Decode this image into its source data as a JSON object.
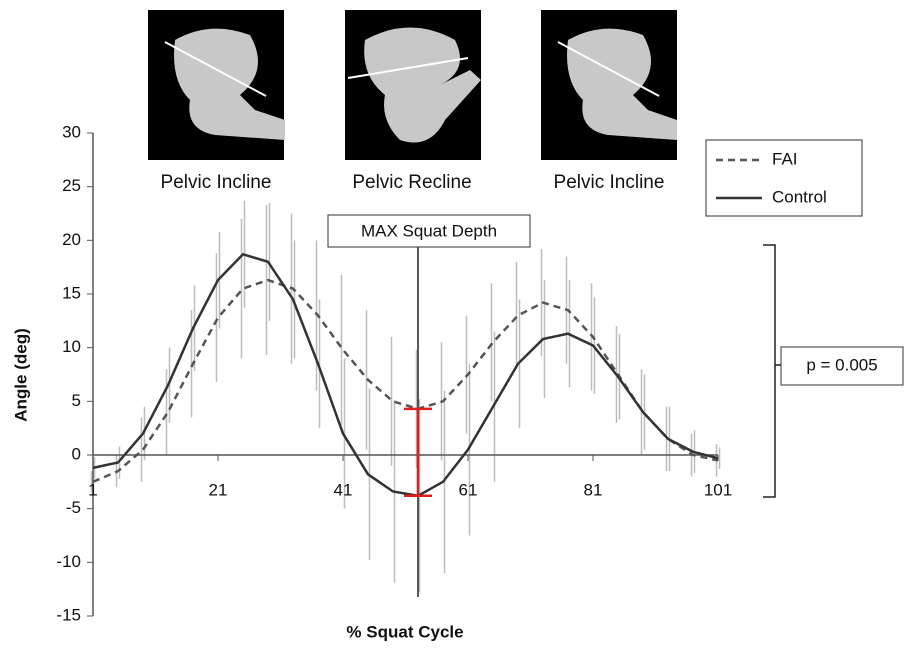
{
  "chart_data": {
    "type": "line",
    "x_label": "% Squat Cycle",
    "y_label": "Angle (deg)",
    "x": [
      1,
      5,
      9,
      13,
      17,
      21,
      25,
      29,
      33,
      37,
      41,
      45,
      49,
      53,
      57,
      61,
      65,
      69,
      73,
      77,
      81,
      85,
      89,
      93,
      97,
      101
    ],
    "series": [
      {
        "name": "FAI",
        "color": "#555555",
        "dash": true,
        "values": [
          -2.5,
          -1.5,
          0.5,
          4,
          8.5,
          12.8,
          15.5,
          16.3,
          15.5,
          13,
          9.8,
          7,
          5,
          4.3,
          5,
          7.5,
          10.5,
          13,
          14.2,
          13.5,
          11,
          7.5,
          4,
          1.5,
          0,
          -0.5
        ],
        "errors": [
          1,
          1.5,
          3,
          4,
          5,
          6,
          6.5,
          7,
          7,
          7,
          7,
          6.5,
          6,
          5.5,
          5.5,
          5.5,
          5.5,
          5,
          5,
          5,
          5,
          4.5,
          4,
          3,
          2,
          1.5
        ]
      },
      {
        "name": "Control",
        "color": "#333333",
        "dash": false,
        "values": [
          -1.2,
          -0.7,
          2,
          6.5,
          11.8,
          16.3,
          18.7,
          18,
          14.5,
          8.5,
          2,
          -1.8,
          -3.4,
          -3.8,
          -2.5,
          0.5,
          4.5,
          8.5,
          10.8,
          11.3,
          10.2,
          7.3,
          4,
          1.5,
          0.3,
          -0.3
        ],
        "errors": [
          1,
          1.5,
          2.5,
          3.5,
          4,
          4.5,
          5,
          5.5,
          5.5,
          6,
          7,
          8,
          8.5,
          9,
          8.5,
          8,
          7,
          6,
          5.5,
          5,
          4.5,
          4,
          3.5,
          3,
          2,
          1
        ]
      }
    ],
    "xlim": [
      1,
      101
    ],
    "xticks": [
      1,
      21,
      41,
      61,
      81,
      101
    ],
    "ylim": [
      -15,
      30
    ],
    "yticks": [
      -15,
      -10,
      -5,
      0,
      5,
      10,
      15,
      20,
      25,
      30
    ],
    "error_color": "#bdbdbd",
    "depth_line": {
      "x": 53,
      "label": "MAX Squat Depth"
    },
    "difference": {
      "x": 53,
      "from": -3.8,
      "to": 4.3,
      "color": "#e02020"
    },
    "p_label": "p = 0.005",
    "phases": [
      "Pelvic Incline",
      "Pelvic Recline",
      "Pelvic Incline"
    ]
  }
}
